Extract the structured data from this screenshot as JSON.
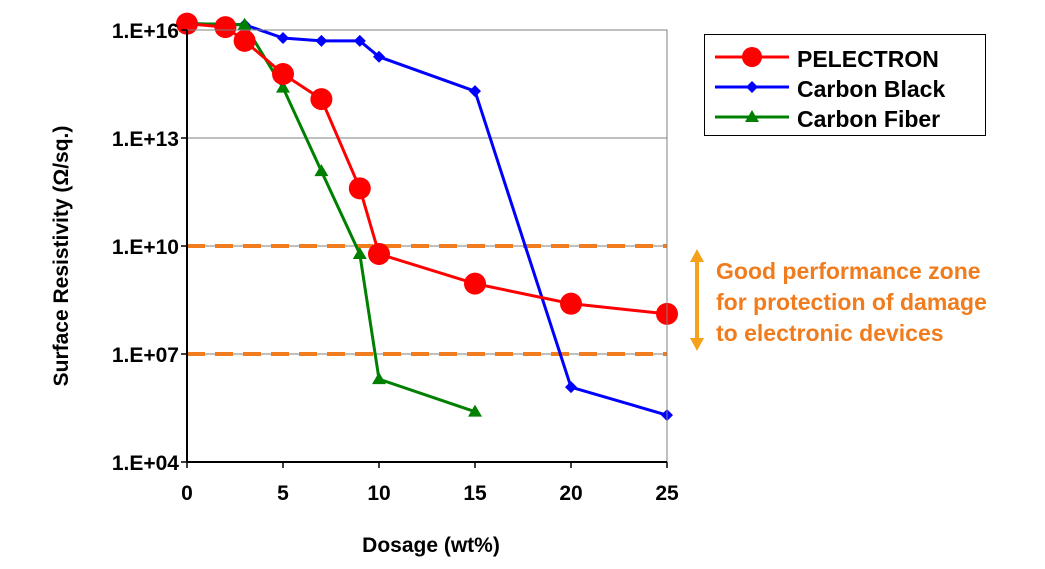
{
  "chart_data": {
    "type": "line",
    "xlabel": "Dosage (wt%)",
    "ylabel": "Surface Resistivity (Ω/sq.)",
    "xlim": [
      0,
      25
    ],
    "ylim_log10": [
      4,
      16
    ],
    "y_scale": "log",
    "x_ticks": [
      0,
      5,
      10,
      15,
      20,
      25
    ],
    "y_ticks": [
      {
        "exp": 4,
        "label": "1.E+04"
      },
      {
        "exp": 7,
        "label": "1.E+07"
      },
      {
        "exp": 10,
        "label": "1.E+10"
      },
      {
        "exp": 13,
        "label": "1.E+13"
      },
      {
        "exp": 16,
        "label": "1.E+16"
      }
    ],
    "grid": "horizontal",
    "legend_position": "top-right",
    "series": [
      {
        "name": "PELECTRON",
        "color": "#FF0000",
        "marker": "circle",
        "x": [
          0,
          2,
          3,
          5,
          7,
          9,
          10,
          15,
          20,
          25
        ],
        "y": [
          1.5e+16,
          1.2e+16,
          5000000000000000.0,
          600000000000000.0,
          120000000000000.0,
          400000000000.0,
          6000000000.0,
          900000000.0,
          250000000.0,
          130000000.0
        ]
      },
      {
        "name": "Carbon Black",
        "color": "#0000FF",
        "marker": "diamond",
        "x": [
          0,
          3,
          5,
          7,
          9,
          10,
          15,
          20,
          25
        ],
        "y": [
          1.5e+16,
          1.4e+16,
          6000000000000000.0,
          5000000000000000.0,
          5000000000000000.0,
          1800000000000000.0,
          200000000000000.0,
          1200000.0,
          200000.0
        ]
      },
      {
        "name": "Carbon Fiber",
        "color": "#008000",
        "marker": "triangle",
        "x": [
          0,
          3,
          5,
          7,
          9,
          10,
          15
        ],
        "y": [
          1.5e+16,
          1.4e+16,
          250000000000000.0,
          1200000000000.0,
          6000000000.0,
          2000000.0,
          250000.0
        ]
      }
    ],
    "reference_lines": [
      {
        "y": 10000000000.0,
        "color": "#F07C1E",
        "style": "dashed"
      },
      {
        "y": 10000000.0,
        "color": "#F07C1E",
        "style": "dashed"
      }
    ],
    "annotation": {
      "lines": [
        "Good performance zone",
        "for protection of damage",
        "to electronic devices"
      ],
      "color": "#F07C1E"
    }
  }
}
